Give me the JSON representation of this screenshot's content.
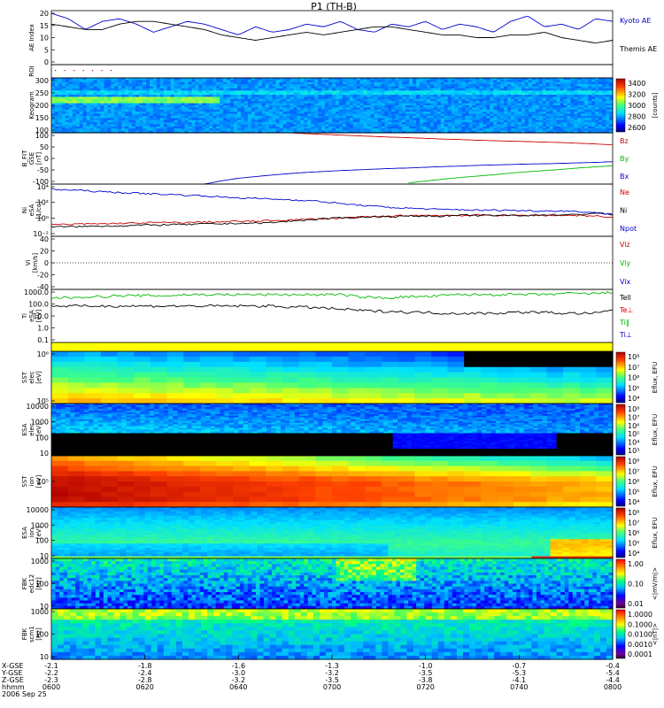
{
  "title": "P1 (TH-B)",
  "chart_data": [
    {
      "type": "line",
      "ylabel": [
        "AE Index"
      ],
      "yticks": [
        "0",
        "5",
        "10",
        "15",
        "20"
      ],
      "ylim": [
        0,
        20
      ],
      "series": [
        {
          "name": "Kyoto AE",
          "color": "#0000cc",
          "values": [
            19,
            17,
            13,
            16,
            17,
            15,
            12,
            14,
            16,
            15,
            13,
            11,
            14,
            12,
            13,
            15,
            14,
            16,
            13,
            12,
            15,
            14,
            16,
            13,
            15,
            14,
            12,
            16,
            18,
            14,
            15,
            13,
            17,
            16
          ]
        },
        {
          "name": "Themis AE",
          "color": "#000000",
          "values": [
            15,
            14,
            13,
            13,
            15,
            16,
            16,
            15,
            14,
            13,
            11,
            10,
            9,
            10,
            11,
            12,
            11,
            12,
            13,
            14,
            14,
            13,
            12,
            11,
            11,
            10,
            10,
            11,
            11,
            12,
            10,
            9,
            8,
            9
          ]
        }
      ]
    },
    {
      "type": "line",
      "ylabel": [
        "ROI"
      ],
      "yticks": [],
      "ylim": [
        0,
        1
      ],
      "series": [
        {
          "name": "",
          "color": "#cc0000",
          "values": [
            1,
            1,
            1,
            1,
            1,
            1,
            1,
            0,
            0,
            0,
            0,
            0,
            0,
            0,
            0,
            0,
            0,
            0,
            0,
            0,
            0,
            0,
            0,
            0,
            0,
            0,
            0,
            0,
            0,
            0,
            0,
            0,
            0,
            0
          ]
        }
      ]
    },
    {
      "type": "heatmap",
      "ylabel": [
        "Keogram"
      ],
      "yticks": [
        "100",
        "150",
        "200",
        "250",
        "300"
      ],
      "colorbar": {
        "ticks": [
          "3400",
          "3200",
          "3000",
          "2800",
          "2600"
        ],
        "label": "[counts]"
      }
    },
    {
      "type": "line",
      "ylabel": [
        "B_FIT",
        "GSE",
        "[nT]"
      ],
      "yticks": [
        "-100",
        "-50",
        "0",
        "50",
        "100"
      ],
      "ylim": [
        -110,
        110
      ],
      "series": [
        {
          "name": "Bz",
          "color": "#cc0000",
          "values": [
            null,
            null,
            null,
            null,
            null,
            null,
            null,
            null,
            null,
            null,
            null,
            null,
            null,
            null,
            110,
            106,
            103,
            100,
            97,
            94,
            91,
            89,
            86,
            83,
            81,
            78,
            76,
            74,
            72,
            70,
            68,
            65,
            62,
            58
          ]
        },
        {
          "name": "By",
          "color": "#00bb00",
          "values": [
            null,
            null,
            null,
            null,
            null,
            null,
            null,
            null,
            null,
            null,
            null,
            null,
            null,
            null,
            null,
            null,
            null,
            null,
            null,
            null,
            null,
            -105,
            -97,
            -89,
            -82,
            -76,
            -70,
            -63,
            -57,
            -52,
            -47,
            -41,
            -36,
            -31
          ]
        },
        {
          "name": "Bx",
          "color": "#0000cc",
          "values": [
            null,
            null,
            null,
            null,
            null,
            null,
            null,
            null,
            null,
            -110,
            -96,
            -85,
            -78,
            -71,
            -65,
            -60,
            -56,
            -52,
            -49,
            -46,
            -43,
            -41,
            -38,
            -35,
            -33,
            -30,
            -28,
            -26,
            -24,
            -23,
            -21,
            -19,
            -17,
            -14
          ]
        }
      ]
    },
    {
      "type": "line",
      "ylabel": [
        "Ni",
        "eSA",
        "[1/cc]"
      ],
      "yticks": [
        "10⁻²",
        "10⁰",
        "10²",
        "10⁴"
      ],
      "ylim": [
        -3,
        5
      ],
      "scale": "log",
      "series": [
        {
          "name": "Ne",
          "color": "#cc0000",
          "values": [
            -1.2,
            -1.2,
            -1.1,
            -1.1,
            -1.0,
            -1.0,
            -0.9,
            -0.9,
            -0.9,
            -0.8,
            -0.8,
            -0.7,
            -0.7,
            -0.6,
            -0.5,
            -0.4,
            -0.3,
            -0.2,
            -0.1,
            0.0,
            0.1,
            0.2,
            0.2,
            0.2,
            0.2,
            0.2,
            0.2,
            0.2,
            0.2,
            0.2,
            0.2,
            0.2,
            0.1,
            -0.1
          ]
        },
        {
          "name": "Ni",
          "color": "#000000",
          "values": [
            -1.6,
            -1.5,
            -1.5,
            -1.4,
            -1.4,
            -1.3,
            -1.3,
            -1.2,
            -1.2,
            -1.1,
            -1.1,
            -1.0,
            -1.0,
            -0.9,
            -0.7,
            -0.5,
            -0.3,
            -0.2,
            -0.1,
            0.0,
            0.0,
            0.1,
            0.1,
            0.1,
            0.2,
            0.2,
            0.2,
            0.2,
            0.2,
            0.3,
            0.3,
            0.3,
            0.6,
            0.3
          ]
        },
        {
          "name": "Npot",
          "color": "#0000cc",
          "values": [
            4.2,
            4.1,
            4.0,
            3.8,
            3.7,
            3.6,
            3.5,
            3.4,
            3.3,
            3.2,
            3.0,
            2.9,
            2.8,
            2.7,
            2.6,
            2.5,
            2.3,
            2.0,
            1.8,
            1.6,
            1.4,
            1.3,
            1.2,
            1.1,
            1.1,
            1.0,
            1.0,
            1.0,
            0.9,
            0.9,
            0.9,
            0.8,
            0.6,
            0.4
          ]
        }
      ]
    },
    {
      "type": "line",
      "ylabel": [
        "Vi",
        "[km/s]"
      ],
      "yticks": [
        "-40",
        "-20",
        "0",
        "20",
        "40"
      ],
      "ylim": [
        -50,
        50
      ],
      "series": [
        {
          "name": "Viz",
          "color": "#cc0000",
          "values": []
        },
        {
          "name": "Viy",
          "color": "#00bb00",
          "values": []
        },
        {
          "name": "Vix",
          "color": "#0000cc",
          "values": []
        }
      ]
    },
    {
      "type": "line",
      "ylabel": [
        "Ti",
        "eSA",
        "[eV]"
      ],
      "yticks": [
        "0.1",
        "1.0",
        "10.0",
        "100.0",
        "1000.0"
      ],
      "ylim": [
        -1.3,
        3.8
      ],
      "scale": "log",
      "series": [
        {
          "name": "Tell",
          "color": "#000000",
          "values": [
            2.2,
            2.2,
            2.2,
            2.2,
            2.2,
            2.2,
            2.2,
            2.2,
            2.2,
            2.2,
            2.2,
            2.2,
            2.2,
            2.2,
            2.1,
            2.1,
            2.0,
            1.9,
            1.8,
            1.7,
            1.7,
            1.6,
            1.6,
            1.5,
            1.5,
            1.5,
            1.5,
            1.6,
            1.6,
            1.6,
            1.5,
            1.5,
            1.5,
            1.8
          ]
        },
        {
          "name": "Te⊥",
          "color": "#cc0000",
          "values": []
        },
        {
          "name": "Ti‖",
          "color": "#00bb00",
          "values": [
            3.0,
            3.0,
            3.1,
            3.1,
            3.2,
            3.2,
            3.2,
            3.2,
            3.3,
            3.3,
            3.3,
            3.3,
            3.3,
            3.3,
            3.3,
            3.3,
            3.3,
            3.3,
            3.1,
            3.0,
            3.0,
            3.1,
            3.1,
            3.2,
            3.3,
            3.3,
            3.3,
            3.3,
            3.3,
            3.3,
            3.4,
            3.4,
            3.4,
            3.5
          ]
        },
        {
          "name": "Ti⊥",
          "color": "#0000cc",
          "values": []
        }
      ]
    },
    {
      "type": "heatmap",
      "ylabel": [
        "SST",
        "elec",
        "[eV]"
      ],
      "yticks": [
        "10⁵",
        "10⁶"
      ],
      "colorbar": {
        "ticks": [
          "10⁸",
          "10⁷",
          "10⁶",
          "10⁵",
          "10⁴"
        ],
        "label": "Eflux, EFU"
      }
    },
    {
      "type": "heatmap",
      "ylabel": [
        "ESA",
        "elec",
        "[eV]"
      ],
      "yticks": [
        "10",
        "100",
        "1000",
        "10000"
      ],
      "colorbar": {
        "ticks": [
          "10⁸",
          "10⁷",
          "10⁶",
          "10⁵",
          "10⁴",
          "10³"
        ],
        "label": "Eflux, EFU"
      }
    },
    {
      "type": "heatmap",
      "ylabel": [
        "SST",
        "ion",
        "[eV]"
      ],
      "yticks": [
        "10⁵"
      ],
      "colorbar": {
        "ticks": [
          "10⁸",
          "10⁷",
          "10⁶",
          "10⁵",
          "10⁴"
        ],
        "label": "Eflux, EFU"
      }
    },
    {
      "type": "heatmap",
      "ylabel": [
        "ESA",
        "ion",
        "[eV]"
      ],
      "yticks": [
        "10",
        "100",
        "1000",
        "10000"
      ],
      "colorbar": {
        "ticks": [
          "10⁸",
          "10⁷",
          "10⁶",
          "10⁵",
          "10⁴"
        ],
        "label": "Eflux, EFU"
      }
    },
    {
      "type": "heatmap",
      "ylabel": [
        "FBK",
        "edc12",
        "[Hz]"
      ],
      "yticks": [
        "10",
        "100",
        "1000"
      ],
      "colorbar": {
        "ticks": [
          "1.00",
          "0.10",
          "0.01"
        ],
        "label": "<|mV/m|>"
      }
    },
    {
      "type": "heatmap",
      "ylabel": [
        "FBK",
        "scm1",
        "[Hz]"
      ],
      "yticks": [
        "10",
        "100",
        "1000"
      ],
      "colorbar": {
        "ticks": [
          "1.0000",
          "0.1000",
          "0.0100",
          "0.0010",
          "0.0001"
        ],
        "label": "<|nT|>"
      }
    }
  ],
  "x_axis": {
    "rows": [
      {
        "label": "X-GSE",
        "values": [
          "-2.1",
          "-1.8",
          "-1.6",
          "-1.3",
          "-1.0",
          "-0.7",
          "-0.4"
        ]
      },
      {
        "label": "Y-GSE",
        "values": [
          "-2.2",
          "-2.4",
          "-3.0",
          "-3.2",
          "-3.5",
          "-5.3",
          "-5.4"
        ]
      },
      {
        "label": "Z-GSE",
        "values": [
          "-2.3",
          "-2.8",
          "-3.2",
          "-3.5",
          "-3.8",
          "-4.1",
          "-4.4"
        ]
      },
      {
        "label": "hhmm",
        "values": [
          "0600",
          "0620",
          "0640",
          "0700",
          "0720",
          "0740",
          "0800"
        ]
      }
    ],
    "date": "2006 Sep 25"
  }
}
